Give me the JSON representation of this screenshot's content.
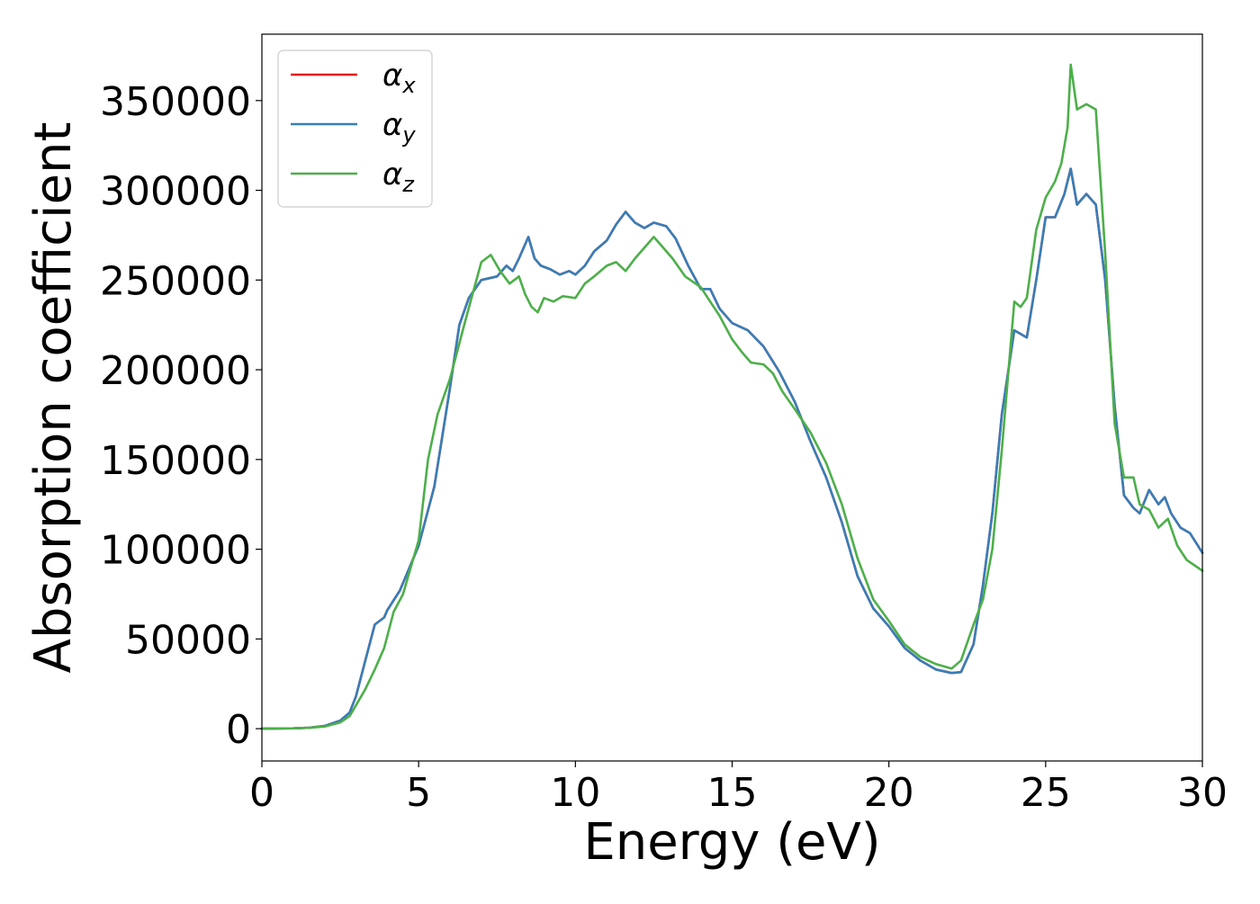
{
  "chart_data": {
    "type": "line",
    "title": "",
    "xlabel": "Energy (eV)",
    "ylabel": "Absorption coefficient",
    "xlim": [
      0,
      30
    ],
    "ylim": [
      -18000,
      387000
    ],
    "xticks": [
      0,
      5,
      10,
      15,
      20,
      25,
      30
    ],
    "yticks": [
      0,
      50000,
      100000,
      150000,
      200000,
      250000,
      300000,
      350000
    ],
    "grid": false,
    "legend_position": "top-left",
    "series": [
      {
        "name": "αx",
        "sub": "x",
        "color": "#e41a1c",
        "points": [
          [
            0,
            0
          ],
          [
            1,
            200
          ],
          [
            1.5,
            500
          ],
          [
            2,
            1500
          ],
          [
            2.5,
            4500
          ],
          [
            2.8,
            9000
          ],
          [
            3,
            18000
          ],
          [
            3.3,
            38000
          ],
          [
            3.6,
            58000
          ],
          [
            3.9,
            62000
          ],
          [
            4,
            66000
          ],
          [
            4.4,
            77000
          ],
          [
            5,
            102000
          ],
          [
            5.5,
            135000
          ],
          [
            6,
            190000
          ],
          [
            6.3,
            225000
          ],
          [
            6.6,
            240000
          ],
          [
            7,
            250000
          ],
          [
            7.5,
            252000
          ],
          [
            7.8,
            258000
          ],
          [
            8,
            255000
          ],
          [
            8.2,
            262000
          ],
          [
            8.5,
            274000
          ],
          [
            8.7,
            262000
          ],
          [
            8.9,
            258000
          ],
          [
            9.2,
            256000
          ],
          [
            9.5,
            253000
          ],
          [
            9.8,
            255000
          ],
          [
            10,
            253000
          ],
          [
            10.3,
            258000
          ],
          [
            10.6,
            266000
          ],
          [
            11,
            272000
          ],
          [
            11.3,
            281000
          ],
          [
            11.6,
            288000
          ],
          [
            11.9,
            282000
          ],
          [
            12.2,
            279000
          ],
          [
            12.5,
            282000
          ],
          [
            12.9,
            280000
          ],
          [
            13.2,
            273000
          ],
          [
            13.6,
            258000
          ],
          [
            14,
            245000
          ],
          [
            14.3,
            245000
          ],
          [
            14.6,
            234000
          ],
          [
            15,
            226000
          ],
          [
            15.5,
            222000
          ],
          [
            16,
            213000
          ],
          [
            16.5,
            199000
          ],
          [
            17,
            182000
          ],
          [
            17.5,
            160000
          ],
          [
            18,
            140000
          ],
          [
            18.5,
            115000
          ],
          [
            19,
            85000
          ],
          [
            19.5,
            67000
          ],
          [
            20,
            57000
          ],
          [
            20.5,
            45000
          ],
          [
            21,
            38000
          ],
          [
            21.5,
            33000
          ],
          [
            22,
            31000
          ],
          [
            22.3,
            31500
          ],
          [
            22.7,
            47000
          ],
          [
            23,
            80000
          ],
          [
            23.3,
            120000
          ],
          [
            23.6,
            175000
          ],
          [
            24,
            222000
          ],
          [
            24.2,
            220000
          ],
          [
            24.4,
            218000
          ],
          [
            24.7,
            250000
          ],
          [
            25,
            285000
          ],
          [
            25.3,
            285000
          ],
          [
            25.6,
            298000
          ],
          [
            25.8,
            312000
          ],
          [
            26,
            292000
          ],
          [
            26.3,
            298000
          ],
          [
            26.6,
            292000
          ],
          [
            26.9,
            250000
          ],
          [
            27.2,
            180000
          ],
          [
            27.5,
            130000
          ],
          [
            27.8,
            123000
          ],
          [
            28,
            120000
          ],
          [
            28.3,
            133000
          ],
          [
            28.6,
            125000
          ],
          [
            28.8,
            129000
          ],
          [
            29,
            120000
          ],
          [
            29.3,
            112000
          ],
          [
            29.6,
            109000
          ],
          [
            30,
            98000
          ]
        ]
      },
      {
        "name": "αy",
        "sub": "y",
        "color": "#377eb8",
        "points": [
          [
            0,
            0
          ],
          [
            1,
            200
          ],
          [
            1.5,
            500
          ],
          [
            2,
            1500
          ],
          [
            2.5,
            4500
          ],
          [
            2.8,
            9000
          ],
          [
            3,
            18000
          ],
          [
            3.3,
            38000
          ],
          [
            3.6,
            58000
          ],
          [
            3.9,
            62000
          ],
          [
            4,
            66000
          ],
          [
            4.4,
            77000
          ],
          [
            5,
            102000
          ],
          [
            5.5,
            135000
          ],
          [
            6,
            190000
          ],
          [
            6.3,
            225000
          ],
          [
            6.6,
            240000
          ],
          [
            7,
            250000
          ],
          [
            7.5,
            252000
          ],
          [
            7.8,
            258000
          ],
          [
            8,
            255000
          ],
          [
            8.2,
            262000
          ],
          [
            8.5,
            274000
          ],
          [
            8.7,
            262000
          ],
          [
            8.9,
            258000
          ],
          [
            9.2,
            256000
          ],
          [
            9.5,
            253000
          ],
          [
            9.8,
            255000
          ],
          [
            10,
            253000
          ],
          [
            10.3,
            258000
          ],
          [
            10.6,
            266000
          ],
          [
            11,
            272000
          ],
          [
            11.3,
            281000
          ],
          [
            11.6,
            288000
          ],
          [
            11.9,
            282000
          ],
          [
            12.2,
            279000
          ],
          [
            12.5,
            282000
          ],
          [
            12.9,
            280000
          ],
          [
            13.2,
            273000
          ],
          [
            13.6,
            258000
          ],
          [
            14,
            245000
          ],
          [
            14.3,
            245000
          ],
          [
            14.6,
            234000
          ],
          [
            15,
            226000
          ],
          [
            15.5,
            222000
          ],
          [
            16,
            213000
          ],
          [
            16.5,
            199000
          ],
          [
            17,
            182000
          ],
          [
            17.5,
            160000
          ],
          [
            18,
            140000
          ],
          [
            18.5,
            115000
          ],
          [
            19,
            85000
          ],
          [
            19.5,
            67000
          ],
          [
            20,
            57000
          ],
          [
            20.5,
            45000
          ],
          [
            21,
            38000
          ],
          [
            21.5,
            33000
          ],
          [
            22,
            31000
          ],
          [
            22.3,
            31500
          ],
          [
            22.7,
            47000
          ],
          [
            23,
            80000
          ],
          [
            23.3,
            120000
          ],
          [
            23.6,
            175000
          ],
          [
            24,
            222000
          ],
          [
            24.2,
            220000
          ],
          [
            24.4,
            218000
          ],
          [
            24.7,
            250000
          ],
          [
            25,
            285000
          ],
          [
            25.3,
            285000
          ],
          [
            25.6,
            298000
          ],
          [
            25.8,
            312000
          ],
          [
            26,
            292000
          ],
          [
            26.3,
            298000
          ],
          [
            26.6,
            292000
          ],
          [
            26.9,
            250000
          ],
          [
            27.2,
            180000
          ],
          [
            27.5,
            130000
          ],
          [
            27.8,
            123000
          ],
          [
            28,
            120000
          ],
          [
            28.3,
            133000
          ],
          [
            28.6,
            125000
          ],
          [
            28.8,
            129000
          ],
          [
            29,
            120000
          ],
          [
            29.3,
            112000
          ],
          [
            29.6,
            109000
          ],
          [
            30,
            98000
          ]
        ]
      },
      {
        "name": "αz",
        "sub": "z",
        "color": "#4daf4a",
        "points": [
          [
            0,
            0
          ],
          [
            1,
            200
          ],
          [
            1.5,
            500
          ],
          [
            2,
            1200
          ],
          [
            2.5,
            3500
          ],
          [
            2.8,
            7000
          ],
          [
            3,
            13000
          ],
          [
            3.3,
            22000
          ],
          [
            3.6,
            33000
          ],
          [
            3.9,
            45000
          ],
          [
            4.2,
            65000
          ],
          [
            4.5,
            75000
          ],
          [
            5,
            105000
          ],
          [
            5.3,
            150000
          ],
          [
            5.6,
            175000
          ],
          [
            6,
            195000
          ],
          [
            6.5,
            228000
          ],
          [
            7,
            260000
          ],
          [
            7.3,
            264000
          ],
          [
            7.6,
            255000
          ],
          [
            7.9,
            248000
          ],
          [
            8.2,
            252000
          ],
          [
            8.4,
            242000
          ],
          [
            8.6,
            235000
          ],
          [
            8.8,
            232000
          ],
          [
            9,
            240000
          ],
          [
            9.3,
            238000
          ],
          [
            9.6,
            241000
          ],
          [
            10,
            240000
          ],
          [
            10.3,
            248000
          ],
          [
            10.6,
            252000
          ],
          [
            11,
            258000
          ],
          [
            11.3,
            260000
          ],
          [
            11.6,
            255000
          ],
          [
            11.9,
            262000
          ],
          [
            12.2,
            268000
          ],
          [
            12.5,
            274000
          ],
          [
            12.8,
            268000
          ],
          [
            13.1,
            262000
          ],
          [
            13.5,
            252000
          ],
          [
            14,
            246000
          ],
          [
            14.3,
            238000
          ],
          [
            14.6,
            230000
          ],
          [
            15,
            217000
          ],
          [
            15.3,
            210000
          ],
          [
            15.6,
            204000
          ],
          [
            16,
            203000
          ],
          [
            16.3,
            198000
          ],
          [
            16.6,
            188000
          ],
          [
            17,
            178000
          ],
          [
            17.5,
            165000
          ],
          [
            18,
            148000
          ],
          [
            18.5,
            125000
          ],
          [
            19,
            95000
          ],
          [
            19.5,
            72000
          ],
          [
            20,
            60000
          ],
          [
            20.5,
            47000
          ],
          [
            21,
            40000
          ],
          [
            21.5,
            36000
          ],
          [
            22,
            33500
          ],
          [
            22.3,
            38000
          ],
          [
            22.7,
            58000
          ],
          [
            23,
            72000
          ],
          [
            23.3,
            100000
          ],
          [
            23.6,
            155000
          ],
          [
            24,
            238000
          ],
          [
            24.2,
            235000
          ],
          [
            24.4,
            240000
          ],
          [
            24.7,
            278000
          ],
          [
            25,
            296000
          ],
          [
            25.3,
            305000
          ],
          [
            25.5,
            315000
          ],
          [
            25.7,
            335000
          ],
          [
            25.8,
            370000
          ],
          [
            26,
            345000
          ],
          [
            26.3,
            348000
          ],
          [
            26.6,
            345000
          ],
          [
            26.9,
            265000
          ],
          [
            27.2,
            170000
          ],
          [
            27.5,
            140000
          ],
          [
            27.8,
            140000
          ],
          [
            28,
            125000
          ],
          [
            28.3,
            122000
          ],
          [
            28.6,
            112000
          ],
          [
            28.9,
            117000
          ],
          [
            29.2,
            102000
          ],
          [
            29.5,
            94000
          ],
          [
            30,
            88000
          ]
        ]
      }
    ]
  }
}
